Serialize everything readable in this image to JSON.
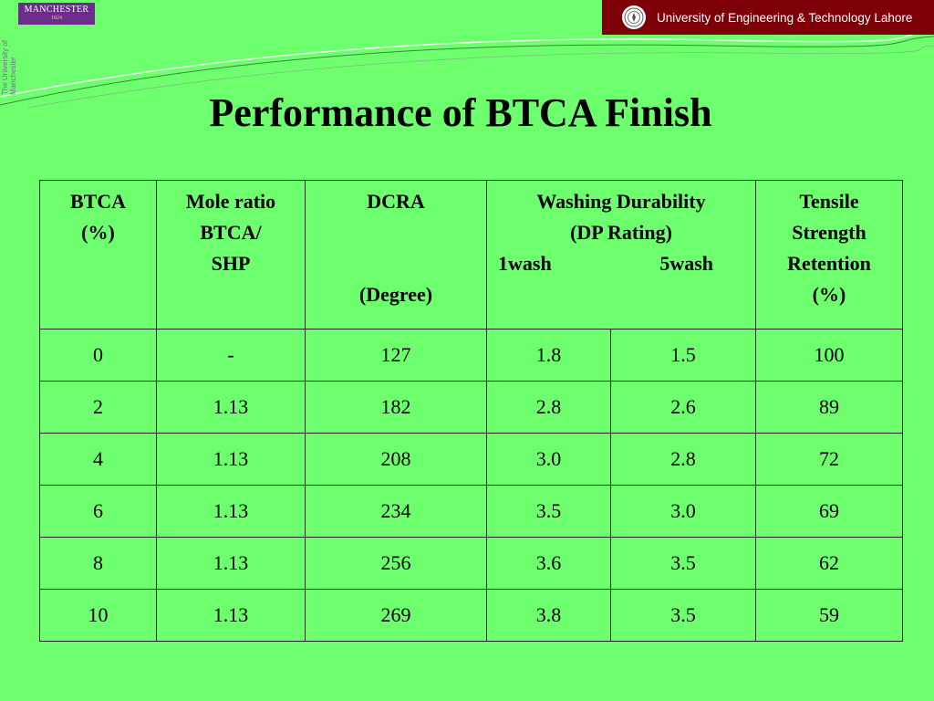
{
  "header": {
    "manchester_logo": {
      "name": "MANCHESTER",
      "year": "1824"
    },
    "vertical_text": "The University of Manchester",
    "uet_banner": "University of Engineering & Technology Lahore"
  },
  "slide": {
    "title": "Performance of BTCA Finish"
  },
  "table": {
    "headers": {
      "btca": [
        "BTCA",
        "(%)"
      ],
      "mole_ratio": [
        "Mole ratio",
        "BTCA/",
        "SHP"
      ],
      "dcra": {
        "top": "DCRA",
        "bottom": "(Degree)"
      },
      "washing": {
        "lines": [
          "Washing Durability",
          "(DP  Rating)"
        ],
        "sub1": "1wash",
        "sub2": "5wash"
      },
      "tensile": [
        "Tensile",
        "Strength",
        "Retention",
        "(%)"
      ]
    },
    "rows": [
      [
        "0",
        "-",
        "127",
        "1.8",
        "1.5",
        "100"
      ],
      [
        "2",
        "1.13",
        "182",
        "2.8",
        "2.6",
        "89"
      ],
      [
        "4",
        "1.13",
        "208",
        "3.0",
        "2.8",
        "72"
      ],
      [
        "6",
        "1.13",
        "234",
        "3.5",
        "3.0",
        "69"
      ],
      [
        "8",
        "1.13",
        "256",
        "3.6",
        "3.5",
        "62"
      ],
      [
        "10",
        "1.13",
        "269",
        "3.8",
        "3.5",
        "59"
      ]
    ]
  },
  "colors": {
    "background": "#6eff6e",
    "manchester_purple": "#6b2c8c",
    "uet_maroon": "#7d0008"
  }
}
